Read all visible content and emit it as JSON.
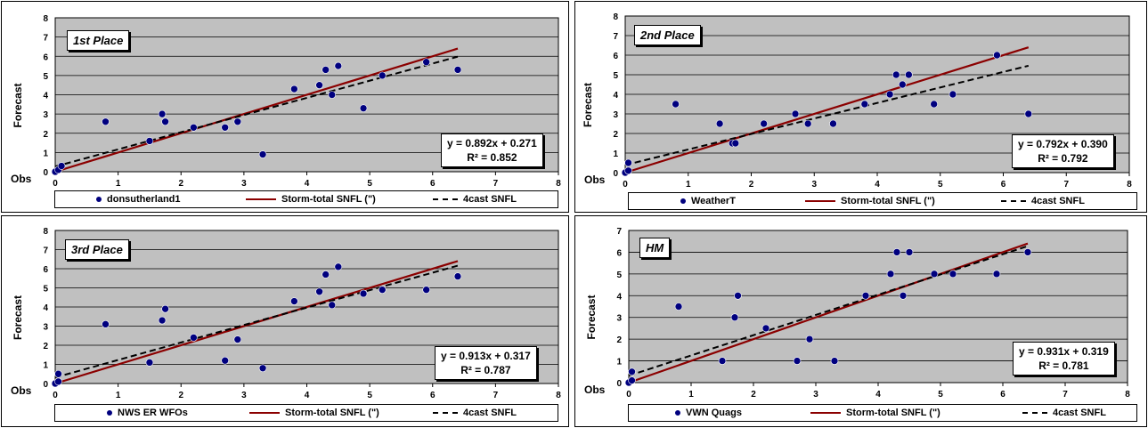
{
  "colors": {
    "plot_bg": "#c0c0c0",
    "point": "#00007f",
    "storm_line": "#8b0000",
    "forecast_line": "#000000"
  },
  "chart_data": [
    {
      "id": "p1",
      "type": "scatter",
      "place": "1st Place",
      "ylabel": "Forecast",
      "xlabel": "Obs",
      "xlim": [
        0,
        8
      ],
      "ylim": [
        0,
        8
      ],
      "xticks": [
        "0",
        "1",
        "2",
        "3",
        "4",
        "5",
        "6",
        "7",
        "8"
      ],
      "yticks": [
        "0",
        "1",
        "2",
        "3",
        "4",
        "5",
        "6",
        "7",
        "8"
      ],
      "grid": true,
      "equation": "y = 0.892x + 0.271",
      "r2": "R² = 0.852",
      "legend": [
        "donsutherland1",
        "Storm-total SNFL (\")",
        "4cast SNFL"
      ],
      "points": [
        [
          0,
          0
        ],
        [
          0.05,
          0.1
        ],
        [
          0.1,
          0.3
        ],
        [
          0.8,
          2.6
        ],
        [
          1.5,
          1.6
        ],
        [
          1.7,
          3.0
        ],
        [
          1.75,
          2.6
        ],
        [
          2.2,
          2.3
        ],
        [
          2.7,
          2.3
        ],
        [
          2.9,
          2.6
        ],
        [
          3.3,
          0.9
        ],
        [
          3.8,
          4.3
        ],
        [
          4.2,
          4.5
        ],
        [
          4.3,
          5.3
        ],
        [
          4.4,
          4.0
        ],
        [
          4.5,
          5.5
        ],
        [
          4.9,
          3.3
        ],
        [
          5.2,
          5.0
        ],
        [
          5.9,
          5.7
        ],
        [
          6.4,
          5.3
        ]
      ],
      "storm_line": [
        [
          0,
          0
        ],
        [
          6.4,
          6.4
        ]
      ],
      "fit_line": [
        [
          0,
          0.271
        ],
        [
          6.4,
          5.98
        ]
      ]
    },
    {
      "id": "p2",
      "type": "scatter",
      "place": "2nd Place",
      "ylabel": "Forecast",
      "xlabel": "Obs",
      "xlim": [
        0,
        8
      ],
      "ylim": [
        0,
        8
      ],
      "xticks": [
        "0",
        "1",
        "2",
        "3",
        "4",
        "5",
        "6",
        "7",
        "8"
      ],
      "yticks": [
        "0",
        "1",
        "2",
        "3",
        "4",
        "5",
        "6",
        "7",
        "8"
      ],
      "grid": true,
      "equation": "y = 0.792x + 0.390",
      "r2": "R² = 0.792",
      "legend": [
        "WeatherT",
        "Storm-total SNFL (\")",
        "4cast SNFL"
      ],
      "points": [
        [
          0,
          0
        ],
        [
          0.05,
          0.1
        ],
        [
          0.05,
          0.5
        ],
        [
          0.8,
          3.5
        ],
        [
          1.5,
          2.5
        ],
        [
          1.7,
          1.5
        ],
        [
          1.75,
          1.5
        ],
        [
          2.2,
          2.5
        ],
        [
          2.7,
          3.0
        ],
        [
          2.9,
          2.5
        ],
        [
          3.3,
          2.5
        ],
        [
          3.8,
          3.5
        ],
        [
          4.2,
          4.0
        ],
        [
          4.3,
          5.0
        ],
        [
          4.4,
          4.5
        ],
        [
          4.5,
          5.0
        ],
        [
          4.9,
          3.5
        ],
        [
          5.2,
          4.0
        ],
        [
          5.9,
          6.0
        ],
        [
          6.4,
          3.0
        ]
      ],
      "storm_line": [
        [
          0,
          0
        ],
        [
          6.4,
          6.4
        ]
      ],
      "fit_line": [
        [
          0,
          0.39
        ],
        [
          6.4,
          5.46
        ]
      ]
    },
    {
      "id": "p3",
      "type": "scatter",
      "place": "3rd Place",
      "ylabel": "Forecast",
      "xlabel": "Obs",
      "xlim": [
        0,
        8
      ],
      "ylim": [
        0,
        8
      ],
      "xticks": [
        "0",
        "1",
        "2",
        "3",
        "4",
        "5",
        "6",
        "7",
        "8"
      ],
      "yticks": [
        "0",
        "1",
        "2",
        "3",
        "4",
        "5",
        "6",
        "7",
        "8"
      ],
      "grid": true,
      "equation": "y = 0.913x + 0.317",
      "r2": "R² = 0.787",
      "legend": [
        "NWS ER WFOs",
        "Storm-total SNFL (\")",
        "4cast SNFL"
      ],
      "points": [
        [
          0,
          0
        ],
        [
          0.05,
          0.1
        ],
        [
          0.05,
          0.5
        ],
        [
          0.8,
          3.1
        ],
        [
          1.5,
          1.1
        ],
        [
          1.7,
          3.3
        ],
        [
          1.75,
          3.9
        ],
        [
          2.2,
          2.4
        ],
        [
          2.7,
          1.2
        ],
        [
          2.9,
          2.3
        ],
        [
          3.3,
          0.8
        ],
        [
          3.8,
          4.3
        ],
        [
          4.2,
          4.8
        ],
        [
          4.3,
          5.7
        ],
        [
          4.4,
          4.1
        ],
        [
          4.5,
          6.1
        ],
        [
          4.9,
          4.7
        ],
        [
          5.2,
          4.9
        ],
        [
          5.9,
          4.9
        ],
        [
          6.4,
          5.6
        ]
      ],
      "storm_line": [
        [
          0,
          0
        ],
        [
          6.4,
          6.4
        ]
      ],
      "fit_line": [
        [
          0,
          0.317
        ],
        [
          6.4,
          6.16
        ]
      ]
    },
    {
      "id": "p4",
      "type": "scatter",
      "place": "HM",
      "ylabel": "Forecast",
      "xlabel": "Obs",
      "xlim": [
        0,
        8
      ],
      "ylim": [
        0,
        7
      ],
      "xticks": [
        "0",
        "1",
        "2",
        "3",
        "4",
        "5",
        "6",
        "7",
        "8"
      ],
      "yticks": [
        "0",
        "1",
        "2",
        "3",
        "4",
        "5",
        "6",
        "7"
      ],
      "grid": true,
      "equation": "y = 0.931x + 0.319",
      "r2": "R² = 0.781",
      "legend": [
        "VWN Quags",
        "Storm-total SNFL (\")",
        "4cast SNFL"
      ],
      "points": [
        [
          0,
          0
        ],
        [
          0.05,
          0.1
        ],
        [
          0.05,
          0.5
        ],
        [
          0.8,
          3.5
        ],
        [
          1.5,
          1.0
        ],
        [
          1.7,
          3.0
        ],
        [
          1.75,
          4.0
        ],
        [
          2.2,
          2.5
        ],
        [
          2.7,
          1.0
        ],
        [
          2.9,
          2.0
        ],
        [
          3.3,
          1.0
        ],
        [
          3.8,
          4.0
        ],
        [
          4.2,
          5.0
        ],
        [
          4.3,
          6.0
        ],
        [
          4.4,
          4.0
        ],
        [
          4.5,
          6.0
        ],
        [
          4.9,
          5.0
        ],
        [
          5.2,
          5.0
        ],
        [
          5.9,
          5.0
        ],
        [
          6.4,
          6.0
        ]
      ],
      "storm_line": [
        [
          0,
          0
        ],
        [
          6.4,
          6.4
        ]
      ],
      "fit_line": [
        [
          0,
          0.319
        ],
        [
          6.4,
          6.28
        ]
      ]
    }
  ]
}
